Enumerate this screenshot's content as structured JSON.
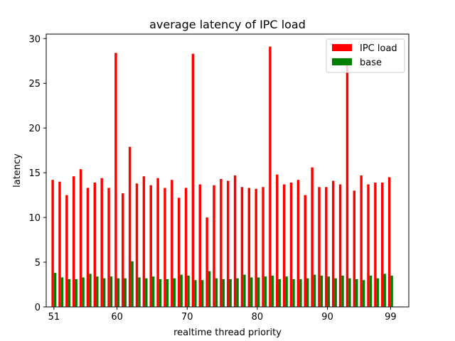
{
  "chart_data": {
    "type": "bar",
    "title": "average latency of IPC load",
    "xlabel": "realtime thread priority",
    "ylabel": "latency",
    "x": [
      51,
      52,
      53,
      54,
      55,
      56,
      57,
      58,
      59,
      60,
      61,
      62,
      63,
      64,
      65,
      66,
      67,
      68,
      69,
      70,
      71,
      72,
      73,
      74,
      75,
      76,
      77,
      78,
      79,
      80,
      81,
      82,
      83,
      84,
      85,
      86,
      87,
      88,
      89,
      90,
      91,
      92,
      93,
      94,
      95,
      96,
      97,
      98,
      99
    ],
    "series": [
      {
        "name": "IPC load",
        "color": "#ff0000",
        "values": [
          14.2,
          14.0,
          12.5,
          14.6,
          15.4,
          13.3,
          13.9,
          14.4,
          13.3,
          28.4,
          12.7,
          17.9,
          13.8,
          14.6,
          13.6,
          14.4,
          13.3,
          14.2,
          12.2,
          13.3,
          28.3,
          13.7,
          10.0,
          13.6,
          14.3,
          14.1,
          14.7,
          13.4,
          13.3,
          13.2,
          13.4,
          29.1,
          14.8,
          13.7,
          13.9,
          14.2,
          12.5,
          15.6,
          13.4,
          13.4,
          14.1,
          13.7,
          27.5,
          13.0,
          14.7,
          13.7,
          13.9,
          13.9,
          14.5
        ]
      },
      {
        "name": "base",
        "color": "#008000",
        "values": [
          3.8,
          3.3,
          3.1,
          3.1,
          3.3,
          3.7,
          3.4,
          3.2,
          3.4,
          3.2,
          3.2,
          5.1,
          3.3,
          3.2,
          3.4,
          3.1,
          3.1,
          3.2,
          3.6,
          3.5,
          3.0,
          3.0,
          4.0,
          3.2,
          3.1,
          3.1,
          3.2,
          3.6,
          3.3,
          3.3,
          3.4,
          3.5,
          3.1,
          3.4,
          3.1,
          3.1,
          3.2,
          3.6,
          3.5,
          3.4,
          3.2,
          3.5,
          3.2,
          3.1,
          3.0,
          3.5,
          3.2,
          3.7,
          3.5
        ]
      }
    ],
    "xticks": [
      51,
      60,
      70,
      80,
      90,
      99
    ],
    "yticks": [
      0,
      5,
      10,
      15,
      20,
      25,
      30
    ],
    "xlim": [
      49.9,
      101.6
    ],
    "ylim": [
      0,
      30.5
    ],
    "grid": false,
    "legend_position": "top-right"
  }
}
